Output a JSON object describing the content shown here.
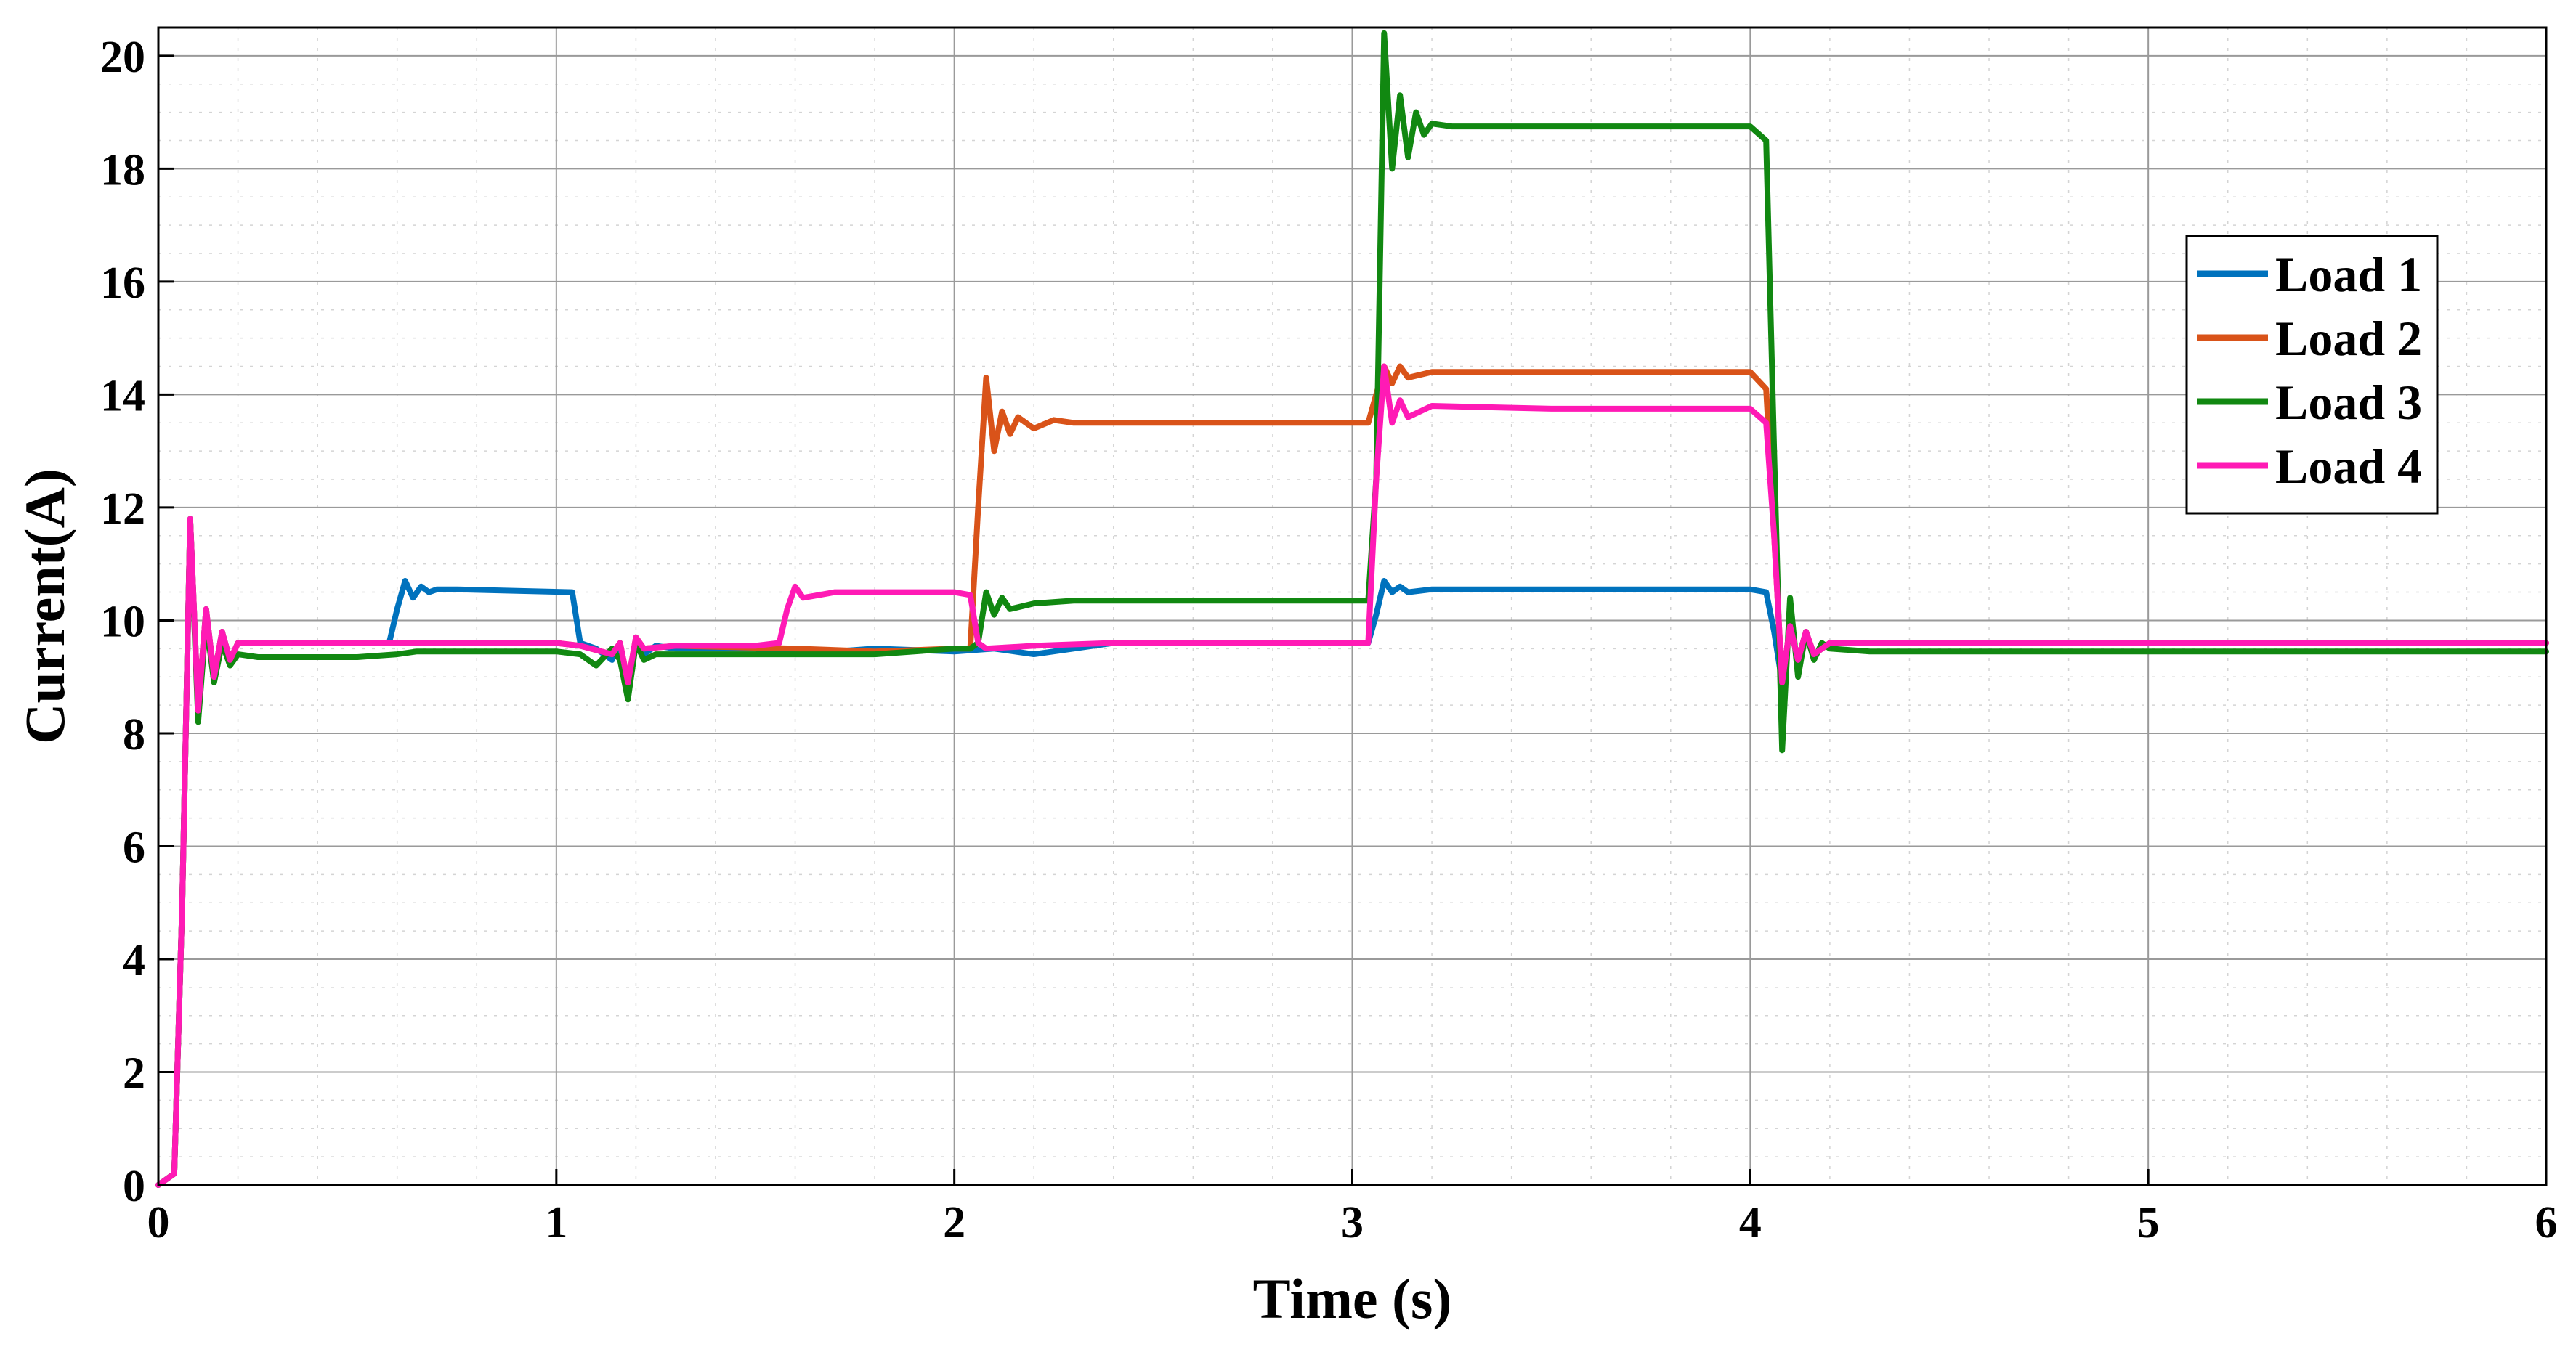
{
  "chart_data": {
    "type": "line",
    "xlabel": "Time (s)",
    "ylabel": "Current(A)",
    "xlim": [
      0,
      6
    ],
    "ylim": [
      0,
      20.5
    ],
    "xticks": [
      0,
      1,
      2,
      3,
      4,
      5,
      6
    ],
    "yticks": [
      0,
      2,
      4,
      6,
      8,
      10,
      12,
      14,
      16,
      18,
      20
    ],
    "grid": true,
    "minor_grid": true,
    "legend_position": "right",
    "series": [
      {
        "name": "Load 1",
        "color": "#0072BD",
        "x": [
          0,
          0.04,
          0.06,
          0.08,
          0.1,
          0.12,
          0.14,
          0.16,
          0.18,
          0.2,
          0.25,
          0.3,
          0.58,
          0.6,
          0.62,
          0.64,
          0.66,
          0.68,
          0.7,
          0.75,
          1.04,
          1.06,
          1.1,
          1.14,
          1.16,
          1.18,
          1.2,
          1.22,
          1.25,
          1.3,
          1.5,
          1.6,
          1.8,
          2.0,
          2.1,
          2.2,
          2.4,
          2.6,
          2.8,
          3.04,
          3.06,
          3.08,
          3.1,
          3.12,
          3.14,
          3.2,
          3.6,
          4.0,
          4.04,
          4.06,
          4.08,
          4.1,
          4.12,
          4.14,
          4.16,
          4.2,
          4.3,
          5.0,
          6.0
        ],
        "y": [
          0,
          0.2,
          5.0,
          11.8,
          8.4,
          10.2,
          9.0,
          9.8,
          9.3,
          9.6,
          9.6,
          9.6,
          9.6,
          10.2,
          10.7,
          10.4,
          10.6,
          10.5,
          10.55,
          10.55,
          10.5,
          9.6,
          9.5,
          9.3,
          9.6,
          8.8,
          9.7,
          9.4,
          9.55,
          9.5,
          9.5,
          9.4,
          9.5,
          9.45,
          9.5,
          9.4,
          9.6,
          9.6,
          9.6,
          9.6,
          10.1,
          10.7,
          10.5,
          10.6,
          10.5,
          10.55,
          10.55,
          10.55,
          10.5,
          9.8,
          8.9,
          9.9,
          9.3,
          9.8,
          9.4,
          9.6,
          9.6,
          9.6,
          9.6
        ]
      },
      {
        "name": "Load 2",
        "color": "#D95319",
        "x": [
          0,
          0.04,
          0.06,
          0.08,
          0.1,
          0.12,
          0.14,
          0.16,
          0.18,
          0.2,
          0.3,
          1.0,
          1.06,
          1.14,
          1.16,
          1.18,
          1.2,
          1.22,
          1.3,
          1.6,
          1.8,
          2.0,
          2.04,
          2.06,
          2.08,
          2.1,
          2.12,
          2.14,
          2.16,
          2.2,
          2.25,
          2.3,
          2.4,
          2.6,
          3.04,
          3.06,
          3.08,
          3.1,
          3.12,
          3.14,
          3.2,
          3.4,
          3.6,
          3.8,
          4.0,
          4.04,
          4.06,
          4.08,
          4.1,
          4.12,
          4.14,
          4.16,
          4.2,
          4.3,
          5.0,
          6.0
        ],
        "y": [
          0,
          0.2,
          5.0,
          11.8,
          8.4,
          10.2,
          9.0,
          9.8,
          9.3,
          9.6,
          9.6,
          9.6,
          9.55,
          9.4,
          9.6,
          8.9,
          9.7,
          9.5,
          9.55,
          9.5,
          9.45,
          9.5,
          9.5,
          12.0,
          14.3,
          13.0,
          13.7,
          13.3,
          13.6,
          13.4,
          13.55,
          13.5,
          13.5,
          13.5,
          13.5,
          14.0,
          14.5,
          14.2,
          14.5,
          14.3,
          14.4,
          14.4,
          14.4,
          14.4,
          14.4,
          14.1,
          11.5,
          8.9,
          9.9,
          9.3,
          9.8,
          9.4,
          9.6,
          9.6,
          9.6,
          9.6
        ]
      },
      {
        "name": "Load 3",
        "color": "#118811",
        "x": [
          0,
          0.04,
          0.06,
          0.08,
          0.1,
          0.12,
          0.14,
          0.16,
          0.18,
          0.2,
          0.25,
          0.5,
          0.6,
          0.65,
          0.7,
          1.0,
          1.06,
          1.1,
          1.14,
          1.16,
          1.18,
          1.2,
          1.22,
          1.25,
          1.3,
          1.5,
          1.6,
          1.8,
          2.0,
          2.04,
          2.06,
          2.08,
          2.1,
          2.12,
          2.14,
          2.2,
          2.3,
          2.5,
          2.8,
          3.04,
          3.06,
          3.08,
          3.1,
          3.12,
          3.14,
          3.16,
          3.18,
          3.2,
          3.25,
          3.5,
          3.8,
          4.0,
          4.04,
          4.06,
          4.08,
          4.1,
          4.12,
          4.14,
          4.16,
          4.18,
          4.2,
          4.3,
          5.0,
          6.0
        ],
        "y": [
          0,
          0.2,
          5.0,
          11.8,
          8.2,
          10.0,
          8.9,
          9.6,
          9.2,
          9.4,
          9.35,
          9.35,
          9.4,
          9.45,
          9.45,
          9.45,
          9.4,
          9.2,
          9.5,
          9.3,
          8.6,
          9.6,
          9.3,
          9.4,
          9.4,
          9.4,
          9.4,
          9.4,
          9.5,
          9.5,
          9.6,
          10.5,
          10.1,
          10.4,
          10.2,
          10.3,
          10.35,
          10.35,
          10.35,
          10.35,
          12.5,
          20.4,
          18.0,
          19.3,
          18.2,
          19.0,
          18.6,
          18.8,
          18.75,
          18.75,
          18.75,
          18.75,
          18.5,
          13.0,
          7.7,
          10.4,
          9.0,
          9.8,
          9.3,
          9.6,
          9.5,
          9.45,
          9.45,
          9.45
        ]
      },
      {
        "name": "Load 4",
        "color": "#FF1AB5",
        "x": [
          0,
          0.04,
          0.06,
          0.08,
          0.1,
          0.12,
          0.14,
          0.16,
          0.18,
          0.2,
          0.3,
          1.0,
          1.06,
          1.14,
          1.16,
          1.18,
          1.2,
          1.22,
          1.3,
          1.5,
          1.56,
          1.58,
          1.6,
          1.62,
          1.7,
          1.9,
          2.0,
          2.04,
          2.06,
          2.08,
          2.2,
          2.4,
          2.6,
          3.04,
          3.06,
          3.08,
          3.1,
          3.12,
          3.14,
          3.2,
          3.5,
          4.0,
          4.04,
          4.06,
          4.08,
          4.1,
          4.12,
          4.14,
          4.16,
          4.2,
          4.3,
          5.0,
          6.0
        ],
        "y": [
          0,
          0.2,
          5.0,
          11.8,
          8.4,
          10.2,
          9.0,
          9.8,
          9.3,
          9.6,
          9.6,
          9.6,
          9.55,
          9.4,
          9.6,
          8.9,
          9.7,
          9.5,
          9.55,
          9.55,
          9.6,
          10.2,
          10.6,
          10.4,
          10.5,
          10.5,
          10.5,
          10.45,
          9.6,
          9.5,
          9.55,
          9.6,
          9.6,
          9.6,
          12.5,
          14.5,
          13.5,
          13.9,
          13.6,
          13.8,
          13.75,
          13.75,
          13.5,
          11.5,
          8.9,
          9.9,
          9.3,
          9.8,
          9.4,
          9.6,
          9.6,
          9.6,
          9.6
        ]
      }
    ]
  }
}
